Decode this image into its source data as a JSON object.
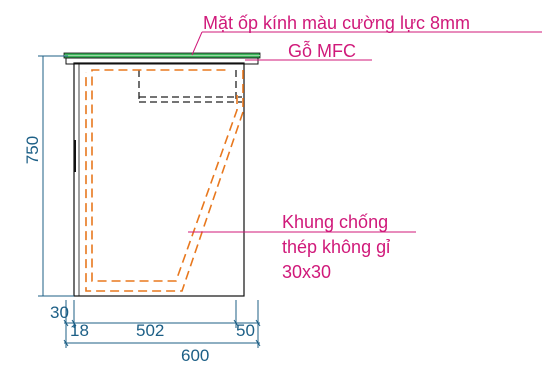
{
  "annotations": {
    "glass_top": "Mặt ốp kính màu cường lực 8mm",
    "wood": "Gỗ MFC",
    "frame_line1": "Khung chống",
    "frame_line2": "thép không gỉ",
    "frame_line3": "30x30"
  },
  "dimensions": {
    "height": "750",
    "bottom_offset": "30",
    "left_part": "18",
    "middle_part": "502",
    "right_part": "50",
    "total_width": "600"
  },
  "colors": {
    "annotation": "#d0197a",
    "dimension": "#1c5f86",
    "frame": "#e8781e",
    "glass": "#2fa84f",
    "outline": "#111111"
  }
}
